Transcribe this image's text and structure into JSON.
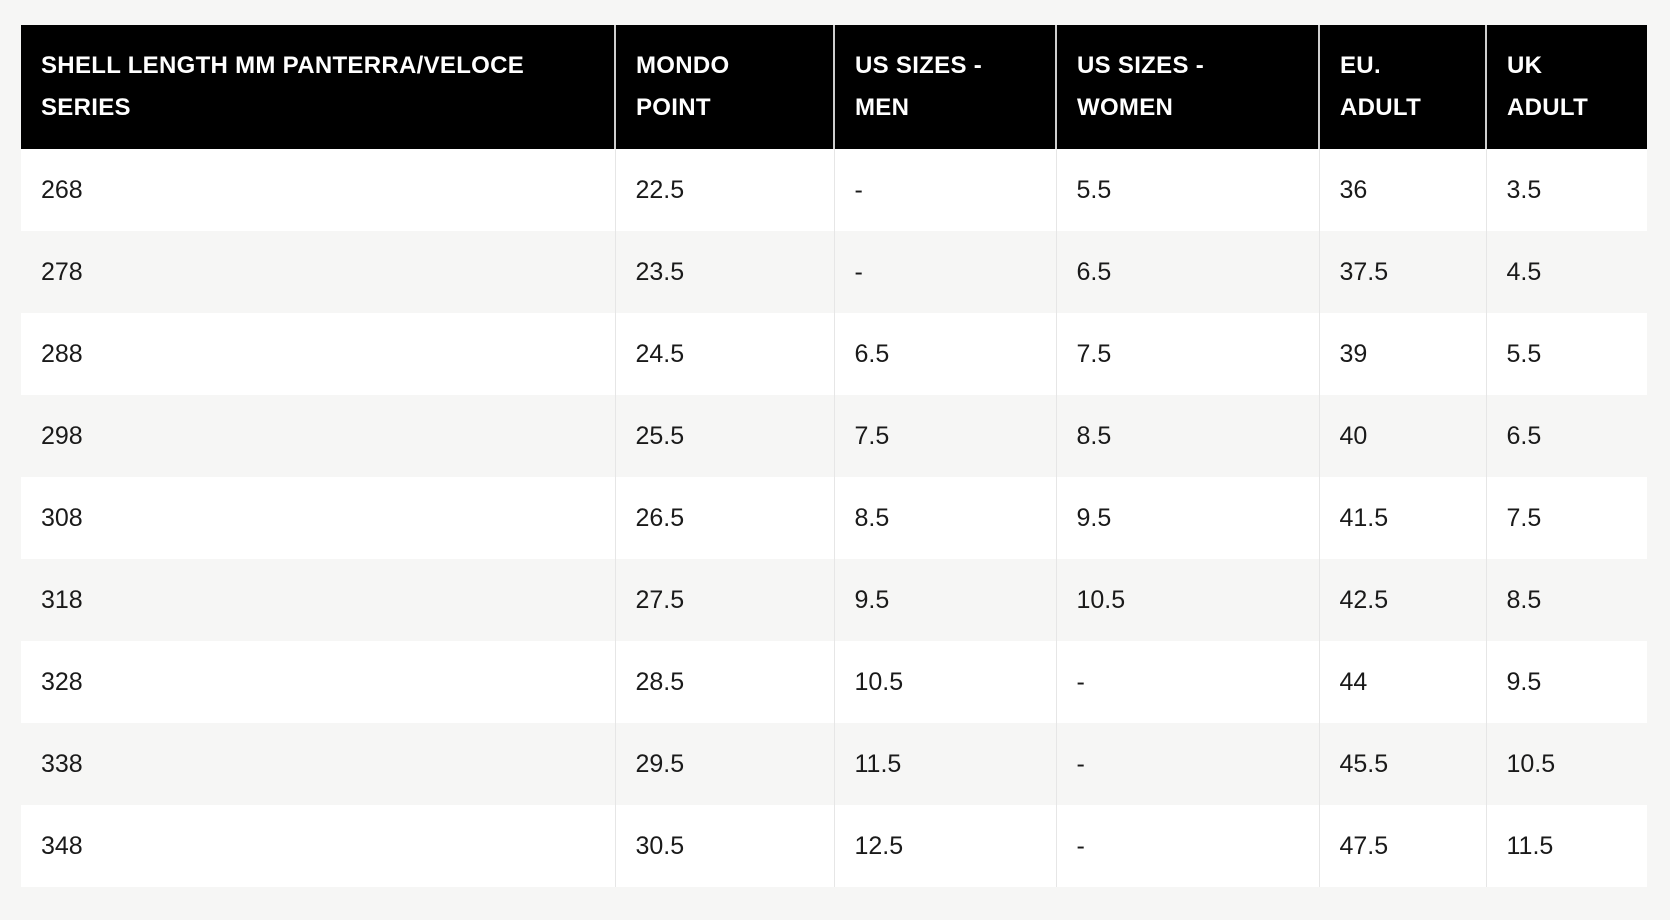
{
  "table": {
    "headers": [
      [
        "SHELL LENGTH MM PANTERRA/VELOCE",
        "SERIES"
      ],
      [
        "MONDO",
        "POINT"
      ],
      [
        "US SIZES -",
        "MEN"
      ],
      [
        "US SIZES -",
        "WOMEN"
      ],
      [
        "EU.",
        "ADULT"
      ],
      [
        "UK",
        "ADULT"
      ]
    ],
    "rows": [
      [
        "268",
        "22.5",
        "-",
        "5.5",
        "36",
        "3.5"
      ],
      [
        "278",
        "23.5",
        "-",
        "6.5",
        "37.5",
        "4.5"
      ],
      [
        "288",
        "24.5",
        "6.5",
        "7.5",
        "39",
        "5.5"
      ],
      [
        "298",
        "25.5",
        "7.5",
        "8.5",
        "40",
        "6.5"
      ],
      [
        "308",
        "26.5",
        "8.5",
        "9.5",
        "41.5",
        "7.5"
      ],
      [
        "318",
        "27.5",
        "9.5",
        "10.5",
        "42.5",
        "8.5"
      ],
      [
        "328",
        "28.5",
        "10.5",
        "-",
        "44",
        "9.5"
      ],
      [
        "338",
        "29.5",
        "11.5",
        "-",
        "45.5",
        "10.5"
      ],
      [
        "348",
        "30.5",
        "12.5",
        "-",
        "47.5",
        "11.5"
      ]
    ]
  },
  "colors": {
    "header_bg": "#000000",
    "header_text": "#ffffff",
    "row_alt": "#f6f6f5",
    "row": "#ffffff"
  }
}
